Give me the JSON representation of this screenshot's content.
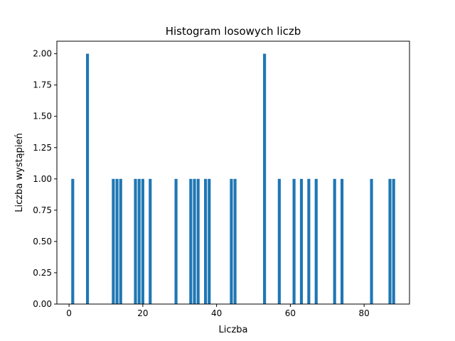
{
  "chart_data": {
    "type": "bar",
    "title": "Histogram losowych liczb",
    "xlabel": "Liczba",
    "ylabel": "Liczba wystąpień",
    "x": [
      1,
      5,
      12,
      13,
      14,
      18,
      19,
      20,
      22,
      29,
      33,
      34,
      35,
      37,
      38,
      44,
      45,
      53,
      57,
      61,
      63,
      65,
      67,
      72,
      74,
      82,
      87,
      88
    ],
    "values": [
      1,
      2,
      1,
      1,
      1,
      1,
      1,
      1,
      1,
      1,
      1,
      1,
      1,
      1,
      1,
      1,
      1,
      2,
      1,
      1,
      1,
      1,
      1,
      1,
      1,
      1,
      1,
      1
    ],
    "xlim": [
      -3.3,
      92.3
    ],
    "ylim": [
      0,
      2.1
    ],
    "xticks": [
      0,
      20,
      40,
      60,
      80
    ],
    "xtick_labels": [
      "0",
      "20",
      "40",
      "60",
      "80"
    ],
    "yticks": [
      0,
      0.25,
      0.5,
      0.75,
      1.0,
      1.25,
      1.5,
      1.75,
      2.0
    ],
    "ytick_labels": [
      "0.00",
      "0.25",
      "0.50",
      "0.75",
      "1.00",
      "1.25",
      "1.50",
      "1.75",
      "2.00"
    ],
    "bar_color": "#1f77b4",
    "grid": false,
    "legend": "none"
  }
}
